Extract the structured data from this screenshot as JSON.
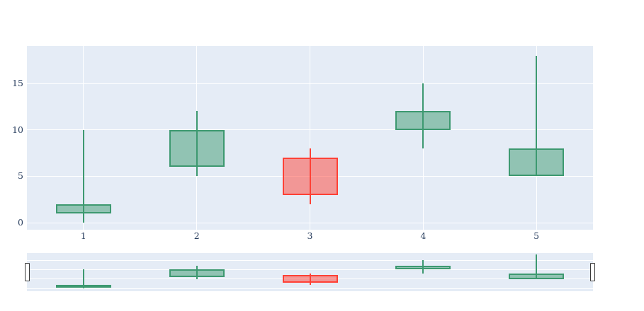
{
  "chart_data": {
    "type": "candlestick",
    "title": "",
    "x": [
      1,
      2,
      3,
      4,
      5
    ],
    "open": [
      1,
      6,
      7,
      10,
      5
    ],
    "high": [
      10,
      12,
      8,
      15,
      18
    ],
    "low": [
      0,
      5,
      2,
      8,
      5
    ],
    "close": [
      2,
      10,
      3,
      12,
      8
    ],
    "xaxis": {
      "tick_labels": [
        "1",
        "2",
        "3",
        "4",
        "5"
      ]
    },
    "yaxis": {
      "tick_labels": [
        "0",
        "5",
        "10",
        "15"
      ],
      "tick_values": [
        0,
        5,
        10,
        15
      ],
      "range": [
        -0.76,
        19.04
      ]
    },
    "rangeslider": {
      "visible": true,
      "range_values": [
        -1.5,
        18.75
      ]
    },
    "legend": "none",
    "grid": "on",
    "colors": {
      "increasing_line": "#3D9970",
      "increasing_fill": "rgba(61,153,112,0.5)",
      "decreasing_line": "#FF4136",
      "decreasing_fill": "rgba(255,65,54,0.5)",
      "plot_background": "#E5ECF6",
      "grid_color": "#FFFFFF",
      "tick_color": "#2a3f5f"
    }
  }
}
